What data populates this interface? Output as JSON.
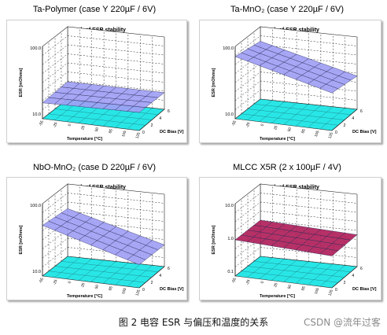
{
  "figure": {
    "caption": "图 2  电容 ESR 与偏压和温度的关系",
    "watermark": "CSDN @流年过客"
  },
  "colors": {
    "floor": "#29e6e6",
    "ta_surface": "#9f9ff5",
    "mlcc_surface": "#b0205a",
    "grid": "#222222",
    "panel_border": "#cfcfcf"
  },
  "chart_data": [
    {
      "type": "surface",
      "panel_title": "Ta-Polymer (case Y 220µF /   6V)",
      "title": "Graph of ESR stability",
      "zlabel": "ESR [mOhms]",
      "xlabel": "Temperature [°C]",
      "ylabel": "DC Bias [V]",
      "z_ticks": [
        "100.0",
        "10.0"
      ],
      "z_log": true,
      "x_ticks": [
        "-55",
        "-25",
        "0",
        "25",
        "50",
        "85",
        "105",
        "125"
      ],
      "y_ticks": [
        "0",
        "2",
        "4",
        "6"
      ],
      "surface_color": "#9f9ff5",
      "z_log_ratio": [
        0.22,
        0.24,
        0.25,
        0.23
      ]
    },
    {
      "type": "surface",
      "panel_title": "Ta-MnO₂ (case Y 220µF / 6V)",
      "title": "Graph of ESR stability",
      "zlabel": "ESR [mOhms]",
      "xlabel": "Temperature [°C]",
      "ylabel": "DC Bias [V]",
      "z_ticks": [
        "100.0",
        "10.0"
      ],
      "z_log": true,
      "x_ticks": [
        "-55",
        "-25",
        "0",
        "25",
        "50",
        "85",
        "105",
        "125"
      ],
      "y_ticks": [
        "0",
        "2",
        "4",
        "6"
      ],
      "surface_color": "#9f9ff5",
      "z_log_ratio": [
        0.86,
        0.8,
        0.52,
        0.46
      ]
    },
    {
      "type": "surface",
      "panel_title": "NbO-MnO₂ (case D 220µF / 6V)",
      "title": "Graph of ESR stability",
      "zlabel": "ESR [mOhms]",
      "xlabel": "Temperature [°C]",
      "ylabel": "DC Bias [V]",
      "z_ticks": [
        "100.0",
        "10.0"
      ],
      "z_log": true,
      "x_ticks": [
        "-55",
        "-25",
        "0",
        "25",
        "50",
        "85",
        "105",
        "125"
      ],
      "y_ticks": [
        "0",
        "2",
        "4",
        "6"
      ],
      "surface_color": "#9f9ff5",
      "z_log_ratio": [
        0.7,
        0.66,
        0.32,
        0.3
      ]
    },
    {
      "type": "surface",
      "panel_title": "MLCC X5R (2 x 100µF / 4V)",
      "title": "Graph of ESR stability",
      "zlabel": "ESR [mOhms]",
      "xlabel": "Temperature [°C]",
      "ylabel": "DC Bias [V]",
      "z_ticks": [
        "10.0",
        "1.0",
        "0.1"
      ],
      "z_log": true,
      "x_ticks": [
        "-55",
        "-25",
        "0",
        "25",
        "50",
        "85",
        "105",
        "125"
      ],
      "y_ticks": [
        "0",
        "2",
        "4",
        "6"
      ],
      "surface_color": "#b0205a",
      "z_log_ratio": [
        0.5,
        0.5,
        0.44,
        0.44
      ]
    }
  ]
}
